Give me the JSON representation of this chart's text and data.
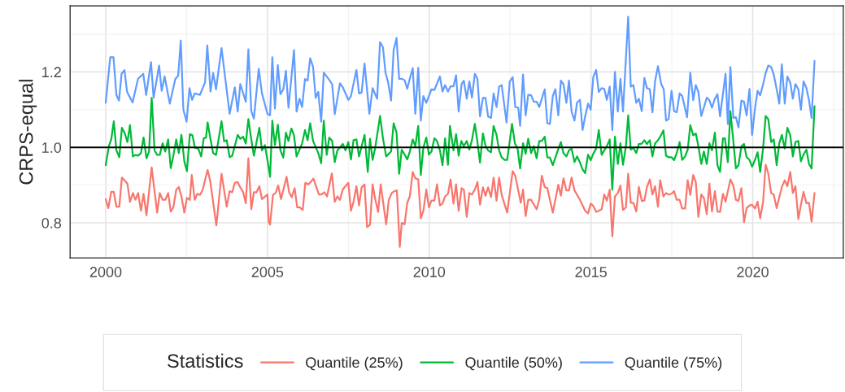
{
  "chart_data": {
    "type": "line",
    "ylabel": "CRPS-equal",
    "legend_title": "Statistics",
    "legend": "bottom",
    "grid": true,
    "xlim": [
      1998.9,
      2022.8
    ],
    "xticks": [
      2000,
      2005,
      2010,
      2015,
      2020
    ],
    "ylim": [
      0.707,
      1.375
    ],
    "yticks": [
      0.8,
      {
        "value": 1,
        "label": "1.0"
      },
      1.2
    ],
    "ref_lines": [
      {
        "axis": "y",
        "value": 1,
        "color": "#000000"
      }
    ],
    "series": [
      {
        "name": "Quantile (25%)",
        "color": "#f8766d",
        "x": [
          2000.0,
          2000.08,
          2000.17,
          2000.25,
          2000.33,
          2000.42,
          2000.5,
          2000.67,
          2000.75,
          2000.84,
          2000.92,
          2001.0,
          2001.09,
          2001.17,
          2001.26,
          2001.42,
          2001.59,
          2001.67,
          2001.76,
          2001.84,
          2001.93,
          2002.01,
          2002.09,
          2002.18,
          2002.26,
          2002.34,
          2002.43,
          2002.51,
          2002.6,
          2002.66,
          2002.75,
          2002.83,
          2002.91,
          2003.0,
          2003.08,
          2003.15,
          2003.23,
          2003.42,
          2003.58,
          2003.74,
          2003.83,
          2003.91,
          2003.99,
          2004.08,
          2004.16,
          2004.25,
          2004.33,
          2004.41,
          2004.5,
          2004.58,
          2004.66,
          2004.75,
          2004.83,
          2005.0,
          2005.04,
          2005.08,
          2005.17,
          2005.25,
          2005.33,
          2005.42,
          2005.59,
          2005.67,
          2005.75,
          2005.84,
          2005.92,
          2006.0,
          2006.09,
          2006.17,
          2006.26,
          2006.34,
          2006.42,
          2006.59,
          2006.67,
          2006.76,
          2006.84,
          2006.99,
          2007.08,
          2007.16,
          2007.24,
          2007.33,
          2007.5,
          2007.58,
          2007.66,
          2007.75,
          2007.83,
          2007.91,
          2008.0,
          2008.08,
          2008.17,
          2008.25,
          2008.33,
          2008.42,
          2008.5,
          2008.67,
          2008.75,
          2008.84,
          2008.92,
          2009.0,
          2009.09,
          2009.15,
          2009.24,
          2009.32,
          2009.4,
          2009.49,
          2009.57,
          2009.66,
          2009.74,
          2009.82,
          2009.91,
          2009.99,
          2010.07,
          2010.16,
          2010.24,
          2010.33,
          2010.41,
          2010.49,
          2010.58,
          2010.66,
          2010.75,
          2010.83,
          2010.91,
          2011.0,
          2011.07,
          2011.16,
          2011.24,
          2011.32,
          2011.41,
          2011.49,
          2011.57,
          2011.66,
          2011.74,
          2011.82,
          2011.91,
          2011.99,
          2012.08,
          2012.16,
          2012.24,
          2012.41,
          2012.58,
          2012.66,
          2012.83,
          2012.9,
          2012.98,
          2013.06,
          2013.15,
          2013.32,
          2013.4,
          2013.48,
          2013.57,
          2013.65,
          2013.82,
          2013.99,
          2014.07,
          2014.15,
          2014.24,
          2014.32,
          2014.4,
          2014.49,
          2014.66,
          2014.82,
          2014.91,
          2014.99,
          2015.07,
          2015.16,
          2015.24,
          2015.33,
          2015.41,
          2015.49,
          2015.58,
          2015.66,
          2015.74,
          2015.83,
          2015.91,
          2015.99,
          2016.08,
          2016.15,
          2016.23,
          2016.31,
          2016.4,
          2016.48,
          2016.57,
          2016.65,
          2016.73,
          2016.82,
          2016.9,
          2016.98,
          2017.07,
          2017.14,
          2017.24,
          2017.32,
          2017.4,
          2017.49,
          2017.57,
          2017.65,
          2017.74,
          2017.82,
          2017.91,
          2017.99,
          2018.07,
          2018.16,
          2018.24,
          2018.32,
          2018.41,
          2018.49,
          2018.58,
          2018.66,
          2018.74,
          2018.83,
          2018.91,
          2018.99,
          2019.08,
          2019.16,
          2019.31,
          2019.4,
          2019.48,
          2019.56,
          2019.65,
          2019.73,
          2019.81,
          2019.9,
          2019.98,
          2020.07,
          2020.15,
          2020.23,
          2020.32,
          2020.4,
          2020.48,
          2020.57,
          2020.65,
          2020.74,
          2020.82,
          2020.9,
          2020.99,
          2021.07,
          2021.16,
          2021.24,
          2021.32,
          2021.41,
          2021.49,
          2021.57,
          2021.66,
          2021.74,
          2021.82,
          2021.91
        ],
        "values": [
          0.863,
          0.839,
          0.882,
          0.882,
          0.843,
          0.843,
          0.92,
          0.904,
          0.856,
          0.879,
          0.861,
          0.879,
          0.832,
          0.877,
          0.82,
          0.947,
          0.827,
          0.879,
          0.861,
          0.861,
          0.879,
          0.83,
          0.841,
          0.888,
          0.895,
          0.87,
          0.827,
          0.866,
          0.861,
          0.927,
          0.861,
          0.877,
          0.874,
          0.888,
          0.917,
          0.94,
          0.911,
          0.793,
          0.93,
          0.843,
          0.884,
          0.881,
          0.906,
          0.908,
          0.894,
          0.881,
          0.852,
          0.971,
          0.836,
          0.881,
          0.881,
          0.897,
          0.863,
          0.875,
          0.802,
          0.795,
          0.874,
          0.879,
          0.899,
          0.863,
          0.922,
          0.881,
          0.868,
          0.892,
          0.841,
          0.841,
          0.834,
          0.906,
          0.902,
          0.909,
          0.917,
          0.875,
          0.875,
          0.881,
          0.87,
          0.931,
          0.856,
          0.87,
          0.861,
          0.889,
          0.906,
          0.832,
          0.856,
          0.897,
          0.846,
          0.894,
          0.902,
          0.789,
          0.795,
          0.902,
          0.863,
          0.829,
          0.902,
          0.796,
          0.861,
          0.879,
          0.884,
          0.886,
          0.736,
          0.8,
          0.796,
          0.853,
          0.87,
          0.935,
          0.918,
          0.915,
          0.812,
          0.832,
          0.888,
          0.841,
          0.859,
          0.859,
          0.902,
          0.846,
          0.851,
          0.87,
          0.877,
          0.915,
          0.851,
          0.902,
          0.832,
          0.892,
          0.888,
          0.816,
          0.879,
          0.875,
          0.888,
          0.908,
          0.848,
          0.894,
          0.872,
          0.894,
          0.868,
          0.92,
          0.859,
          0.92,
          0.874,
          0.827,
          0.937,
          0.925,
          0.853,
          0.888,
          0.818,
          0.861,
          0.861,
          0.836,
          0.861,
          0.925,
          0.895,
          0.892,
          0.827,
          0.901,
          0.872,
          0.918,
          0.886,
          0.886,
          0.92,
          0.886,
          0.861,
          0.832,
          0.825,
          0.851,
          0.845,
          0.829,
          0.832,
          0.836,
          0.875,
          0.859,
          0.888,
          0.764,
          0.87,
          0.879,
          0.899,
          0.834,
          0.841,
          0.93,
          0.853,
          0.853,
          0.83,
          0.895,
          0.858,
          0.859,
          0.895,
          0.915,
          0.875,
          0.897,
          0.843,
          0.913,
          0.87,
          0.879,
          0.875,
          0.877,
          0.884,
          0.861,
          0.861,
          0.838,
          0.838,
          0.913,
          0.874,
          0.927,
          0.908,
          0.816,
          0.875,
          0.866,
          0.823,
          0.904,
          0.83,
          0.884,
          0.83,
          0.829,
          0.877,
          0.856,
          0.915,
          0.899,
          0.861,
          0.858,
          0.892,
          0.802,
          0.839,
          0.846,
          0.848,
          0.838,
          0.856,
          0.812,
          0.856,
          0.954,
          0.931,
          0.879,
          0.875,
          0.839,
          0.868,
          0.895,
          0.913,
          0.897,
          0.935,
          0.879,
          0.897,
          0.81,
          0.848,
          0.882,
          0.852,
          0.853,
          0.803,
          0.879
        ]
      },
      {
        "name": "Quantile (50%)",
        "color": "#00ba38",
        "x": [
          2000.0,
          2000.1,
          2000.17,
          2000.25,
          2000.33,
          2000.42,
          2000.5,
          2000.59,
          2000.67,
          2000.75,
          2000.84,
          2000.92,
          2001.0,
          2001.09,
          2001.17,
          2001.26,
          2001.34,
          2001.42,
          2001.51,
          2001.59,
          2001.67,
          2001.76,
          2001.84,
          2001.93,
          2002.01,
          2002.09,
          2002.18,
          2002.26,
          2002.34,
          2002.43,
          2002.51,
          2002.6,
          2002.68,
          2002.76,
          2002.86,
          2002.95,
          2003.03,
          2003.1,
          2003.15,
          2003.24,
          2003.32,
          2003.41,
          2003.58,
          2003.66,
          2003.74,
          2003.83,
          2003.91,
          2004.08,
          2004.16,
          2004.25,
          2004.33,
          2004.41,
          2004.5,
          2004.58,
          2004.75,
          2004.83,
          2004.92,
          2005.04,
          2005.08,
          2005.15,
          2005.23,
          2005.32,
          2005.4,
          2005.49,
          2005.57,
          2005.65,
          2005.74,
          2005.82,
          2005.9,
          2006.07,
          2006.16,
          2006.24,
          2006.32,
          2006.41,
          2006.57,
          2006.66,
          2006.74,
          2006.83,
          2006.91,
          2007.0,
          2007.08,
          2007.16,
          2007.33,
          2007.41,
          2007.5,
          2007.58,
          2007.66,
          2007.75,
          2007.83,
          2008.0,
          2008.1,
          2008.17,
          2008.25,
          2008.33,
          2008.48,
          2008.57,
          2008.67,
          2008.82,
          2008.9,
          2008.99,
          2009.07,
          2009.15,
          2009.24,
          2009.32,
          2009.4,
          2009.49,
          2009.57,
          2009.66,
          2009.74,
          2009.82,
          2009.91,
          2009.99,
          2010.07,
          2010.16,
          2010.24,
          2010.33,
          2010.41,
          2010.49,
          2010.58,
          2010.64,
          2010.75,
          2010.83,
          2010.91,
          2010.99,
          2011.07,
          2011.16,
          2011.24,
          2011.32,
          2011.41,
          2011.49,
          2011.57,
          2011.66,
          2011.74,
          2011.82,
          2011.91,
          2011.99,
          2012.08,
          2012.16,
          2012.24,
          2012.33,
          2012.41,
          2012.56,
          2012.65,
          2012.73,
          2012.81,
          2012.9,
          2012.98,
          2013.06,
          2013.15,
          2013.23,
          2013.32,
          2013.4,
          2013.48,
          2013.57,
          2013.65,
          2013.73,
          2013.82,
          2013.99,
          2014.07,
          2014.15,
          2014.24,
          2014.32,
          2014.4,
          2014.49,
          2014.57,
          2014.66,
          2014.74,
          2014.82,
          2014.91,
          2014.99,
          2015.07,
          2015.16,
          2015.24,
          2015.33,
          2015.41,
          2015.49,
          2015.58,
          2015.66,
          2015.74,
          2015.83,
          2015.91,
          2015.99,
          2016.08,
          2016.15,
          2016.23,
          2016.31,
          2016.4,
          2016.48,
          2016.57,
          2016.65,
          2016.73,
          2016.82,
          2016.9,
          2016.98,
          2017.07,
          2017.14,
          2017.24,
          2017.32,
          2017.4,
          2017.49,
          2017.57,
          2017.65,
          2017.74,
          2017.82,
          2017.91,
          2017.99,
          2018.07,
          2018.16,
          2018.24,
          2018.32,
          2018.41,
          2018.49,
          2018.58,
          2018.66,
          2018.74,
          2018.83,
          2018.91,
          2018.99,
          2019.08,
          2019.14,
          2019.23,
          2019.31,
          2019.4,
          2019.48,
          2019.56,
          2019.65,
          2019.73,
          2019.81,
          2019.9,
          2019.98,
          2020.07,
          2020.15,
          2020.23,
          2020.32,
          2020.4,
          2020.48,
          2020.57,
          2020.65,
          2020.74,
          2020.82,
          2020.9,
          2020.99,
          2021.07,
          2021.16,
          2021.24,
          2021.32,
          2021.41,
          2021.49,
          2021.57,
          2021.66,
          2021.74,
          2021.82,
          2021.91
        ],
        "values": [
          0.953,
          1.004,
          1.021,
          1.069,
          0.992,
          0.974,
          1.052,
          1.037,
          1.014,
          1.059,
          0.976,
          0.98,
          0.978,
          0.985,
          1.026,
          0.971,
          0.989,
          1.131,
          0.992,
          0.98,
          0.98,
          1.011,
          0.989,
          1.021,
          0.945,
          0.978,
          1.021,
          0.985,
          1.033,
          0.963,
          0.937,
          1.035,
          1.032,
          0.999,
          0.997,
          0.976,
          1.024,
          1.026,
          1.066,
          1.021,
          0.985,
          0.98,
          1.069,
          1.016,
          1.019,
          0.974,
          0.978,
          1.033,
          1.023,
          1.028,
          1.01,
          1.075,
          1.021,
          0.978,
          1.052,
          0.992,
          1.006,
          0.945,
          0.922,
          1.071,
          1.006,
          1.06,
          0.992,
          0.973,
          1.039,
          1.017,
          1.05,
          1.032,
          0.976,
          1.01,
          1.046,
          1.019,
          1.064,
          1.017,
          0.985,
          0.958,
          1.071,
          0.98,
          1.026,
          1.017,
          0.961,
          0.992,
          1.009,
          0.992,
          1.014,
          0.968,
          1.019,
          1.021,
          0.976,
          1.033,
          0.935,
          1.023,
          0.967,
          0.999,
          1.083,
          1.024,
          0.976,
          0.989,
          1.064,
          1.039,
          0.93,
          0.994,
          0.981,
          0.968,
          0.989,
          1.021,
          1.003,
          1.057,
          0.927,
          1.0,
          1.026,
          0.981,
          0.989,
          1.024,
          1.017,
          0.992,
          0.953,
          1.024,
          0.954,
          1.057,
          0.992,
          1.035,
          0.978,
          1.017,
          1.003,
          1.017,
          0.994,
          1.019,
          1.062,
          1.014,
          0.96,
          1.037,
          1.004,
          0.992,
          0.987,
          1.057,
          1.033,
          0.992,
          0.973,
          0.967,
          0.967,
          1.062,
          1.01,
          0.997,
          0.944,
          1.011,
          0.983,
          1.023,
          0.985,
          1.003,
          0.971,
          1.017,
          1.017,
          1.028,
          0.974,
          0.973,
          0.953,
          0.996,
          1.014,
          0.985,
          0.976,
          0.992,
          0.997,
          0.961,
          0.976,
          0.96,
          0.942,
          0.932,
          0.981,
          0.966,
          0.983,
          0.997,
          1.046,
          0.98,
          0.992,
          1.003,
          1.021,
          0.888,
          1.028,
          0.956,
          1.011,
          0.954,
          1.003,
          1.085,
          0.994,
          0.999,
          0.985,
          1.009,
          1.01,
          1.019,
          1.009,
          1.019,
          0.976,
          1.01,
          1.019,
          1.028,
          1.045,
          0.978,
          0.974,
          0.974,
          0.966,
          0.985,
          1.014,
          0.967,
          0.976,
          0.994,
          1.059,
          1.032,
          1.037,
          1.003,
          0.956,
          0.989,
          0.956,
          1.011,
          0.992,
          1.039,
          0.953,
          0.935,
          1.024,
          1.024,
          0.961,
          1.096,
          1.017,
          0.944,
          0.953,
          1.003,
          1.009,
          0.974,
          0.967,
          0.949,
          0.967,
          0.987,
          0.935,
          0.997,
          1.083,
          1.075,
          1.014,
          1.021,
          0.953,
          1.011,
          1.033,
          0.997,
          1.052,
          1.032,
          0.976,
          1.014,
          1.017,
          0.963,
          0.981,
          0.994,
          0.956,
          0.944,
          1.109
        ]
      },
      {
        "name": "Quantile (75%)",
        "color": "#619cff",
        "x": [
          2000.0,
          2000.14,
          2000.24,
          2000.33,
          2000.41,
          2000.49,
          2000.58,
          2000.66,
          2000.83,
          2001.0,
          2001.16,
          2001.25,
          2001.4,
          2001.48,
          2001.65,
          2001.73,
          2001.82,
          2001.98,
          2002.15,
          2002.24,
          2002.32,
          2002.4,
          2002.5,
          2002.59,
          2002.67,
          2002.75,
          2002.91,
          2003.07,
          2003.14,
          2003.24,
          2003.32,
          2003.41,
          2003.58,
          2003.83,
          2003.99,
          2004.08,
          2004.16,
          2004.33,
          2004.41,
          2004.5,
          2004.58,
          2004.73,
          2004.83,
          2005.0,
          2005.08,
          2005.15,
          2005.23,
          2005.32,
          2005.4,
          2005.49,
          2005.57,
          2005.65,
          2005.82,
          2005.9,
          2005.99,
          2006.07,
          2006.16,
          2006.24,
          2006.32,
          2006.41,
          2006.49,
          2006.57,
          2006.66,
          2006.74,
          2006.91,
          2007.0,
          2007.08,
          2007.24,
          2007.33,
          2007.5,
          2007.58,
          2007.75,
          2007.83,
          2007.91,
          2008.0,
          2008.15,
          2008.25,
          2008.39,
          2008.48,
          2008.57,
          2008.65,
          2008.73,
          2008.82,
          2008.9,
          2008.99,
          2009.07,
          2009.15,
          2009.24,
          2009.32,
          2009.4,
          2009.49,
          2009.57,
          2009.66,
          2009.74,
          2009.82,
          2009.91,
          2010.07,
          2010.16,
          2010.33,
          2010.41,
          2010.49,
          2010.58,
          2010.66,
          2010.75,
          2010.83,
          2010.91,
          2011.0,
          2011.07,
          2011.16,
          2011.24,
          2011.32,
          2011.41,
          2011.49,
          2011.57,
          2011.66,
          2011.74,
          2011.82,
          2011.91,
          2011.99,
          2012.08,
          2012.16,
          2012.24,
          2012.39,
          2012.49,
          2012.58,
          2012.66,
          2012.75,
          2012.81,
          2012.9,
          2012.98,
          2013.06,
          2013.15,
          2013.23,
          2013.32,
          2013.4,
          2013.48,
          2013.57,
          2013.65,
          2013.73,
          2013.82,
          2013.9,
          2013.99,
          2014.07,
          2014.15,
          2014.24,
          2014.32,
          2014.4,
          2014.49,
          2014.57,
          2014.66,
          2014.74,
          2014.82,
          2014.91,
          2014.99,
          2015.07,
          2015.16,
          2015.24,
          2015.33,
          2015.41,
          2015.49,
          2015.58,
          2015.66,
          2015.74,
          2015.83,
          2015.91,
          2015.99,
          2016.15,
          2016.23,
          2016.31,
          2016.4,
          2016.48,
          2016.57,
          2016.65,
          2016.73,
          2016.82,
          2016.9,
          2016.98,
          2017.07,
          2017.17,
          2017.25,
          2017.32,
          2017.4,
          2017.49,
          2017.57,
          2017.65,
          2017.74,
          2017.82,
          2017.97,
          2018.07,
          2018.16,
          2018.24,
          2018.32,
          2018.41,
          2018.58,
          2018.66,
          2018.74,
          2018.83,
          2018.91,
          2018.99,
          2019.16,
          2019.23,
          2019.31,
          2019.4,
          2019.48,
          2019.56,
          2019.65,
          2019.73,
          2019.81,
          2019.9,
          2019.98,
          2020.07,
          2020.15,
          2020.23,
          2020.32,
          2020.4,
          2020.48,
          2020.57,
          2020.65,
          2020.74,
          2020.82,
          2020.9,
          2020.99,
          2021.07,
          2021.16,
          2021.24,
          2021.32,
          2021.41,
          2021.49,
          2021.57,
          2021.66,
          2021.74,
          2021.82,
          2021.91
        ],
        "values": [
          1.118,
          1.239,
          1.239,
          1.139,
          1.124,
          1.195,
          1.205,
          1.147,
          1.119,
          1.182,
          1.195,
          1.139,
          1.226,
          1.131,
          1.217,
          1.15,
          1.188,
          1.116,
          1.181,
          1.19,
          1.283,
          1.1,
          1.068,
          1.157,
          1.126,
          1.143,
          1.139,
          1.172,
          1.27,
          1.148,
          1.197,
          1.154,
          1.263,
          1.089,
          1.159,
          1.095,
          1.168,
          1.121,
          1.26,
          1.096,
          1.076,
          1.208,
          1.143,
          1.089,
          1.085,
          1.239,
          1.103,
          1.218,
          1.141,
          1.154,
          1.203,
          1.105,
          1.258,
          1.095,
          1.129,
          1.107,
          1.181,
          1.177,
          1.236,
          1.213,
          1.131,
          1.147,
          1.068,
          1.198,
          1.179,
          1.167,
          1.088,
          1.17,
          1.159,
          1.126,
          1.136,
          1.205,
          1.143,
          1.145,
          1.222,
          1.089,
          1.157,
          1.129,
          1.279,
          1.265,
          1.197,
          1.172,
          1.124,
          1.258,
          1.29,
          1.181,
          1.182,
          1.178,
          1.155,
          1.182,
          1.21,
          1.089,
          1.211,
          1.071,
          1.136,
          1.118,
          1.154,
          1.152,
          1.188,
          1.148,
          1.165,
          1.148,
          1.162,
          1.162,
          1.191,
          1.095,
          1.168,
          1.177,
          1.129,
          1.175,
          1.132,
          1.195,
          1.182,
          1.082,
          1.131,
          1.131,
          1.082,
          1.078,
          1.143,
          1.107,
          1.161,
          1.165,
          1.066,
          1.175,
          1.186,
          1.107,
          1.105,
          1.057,
          1.193,
          1.085,
          1.139,
          1.138,
          1.121,
          1.121,
          1.107,
          1.129,
          1.154,
          1.064,
          1.062,
          1.136,
          1.154,
          1.085,
          1.177,
          1.167,
          1.118,
          1.177,
          1.095,
          1.071,
          1.119,
          1.126,
          1.046,
          1.082,
          1.116,
          1.1,
          1.186,
          1.205,
          1.147,
          1.157,
          1.155,
          1.126,
          1.161,
          1.046,
          1.2,
          1.095,
          1.182,
          1.095,
          1.346,
          1.161,
          1.165,
          1.118,
          1.129,
          1.096,
          1.184,
          1.157,
          1.154,
          1.093,
          1.175,
          1.215,
          1.168,
          1.154,
          1.071,
          1.075,
          1.15,
          1.096,
          1.093,
          1.143,
          1.136,
          1.08,
          1.198,
          1.125,
          1.165,
          1.147,
          1.083,
          1.132,
          1.125,
          1.105,
          1.129,
          1.141,
          1.082,
          1.195,
          1.062,
          1.213,
          1.078,
          1.08,
          1.053,
          1.124,
          1.121,
          1.085,
          1.155,
          1.033,
          1.103,
          1.15,
          1.138,
          1.167,
          1.197,
          1.217,
          1.213,
          1.193,
          1.154,
          1.116,
          1.22,
          1.116,
          1.188,
          1.172,
          1.129,
          1.168,
          1.154,
          1.1,
          1.175,
          1.157,
          1.125,
          1.078,
          1.229
        ]
      }
    ]
  }
}
